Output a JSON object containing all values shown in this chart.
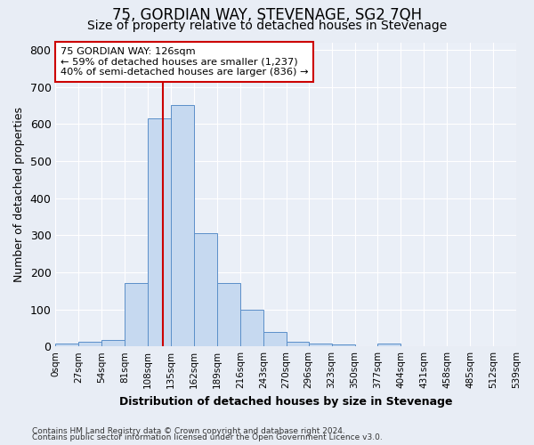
{
  "title": "75, GORDIAN WAY, STEVENAGE, SG2 7QH",
  "subtitle": "Size of property relative to detached houses in Stevenage",
  "xlabel": "Distribution of detached houses by size in Stevenage",
  "ylabel": "Number of detached properties",
  "bin_edges": [
    0,
    27,
    54,
    81,
    108,
    135,
    162,
    189,
    216,
    243,
    270,
    296,
    323,
    350,
    377,
    404,
    431,
    458,
    485,
    512,
    539
  ],
  "bar_heights": [
    7,
    12,
    17,
    172,
    615,
    650,
    305,
    172,
    98,
    40,
    13,
    8,
    5,
    0,
    7,
    0,
    0,
    0,
    0,
    0
  ],
  "bar_color": "#c6d9f0",
  "bar_edgecolor": "#5b8fc9",
  "property_size": 126,
  "redline_color": "#cc0000",
  "annotation_text": "75 GORDIAN WAY: 126sqm\n← 59% of detached houses are smaller (1,237)\n40% of semi-detached houses are larger (836) →",
  "annotation_box_edgecolor": "#cc0000",
  "annotation_box_facecolor": "#ffffff",
  "ylim": [
    0,
    820
  ],
  "yticks": [
    0,
    100,
    200,
    300,
    400,
    500,
    600,
    700,
    800
  ],
  "bg_color": "#e8edf5",
  "plot_bg_color": "#eaeff7",
  "title_fontsize": 12,
  "subtitle_fontsize": 10,
  "footer_line1": "Contains HM Land Registry data © Crown copyright and database right 2024.",
  "footer_line2": "Contains public sector information licensed under the Open Government Licence v3.0."
}
